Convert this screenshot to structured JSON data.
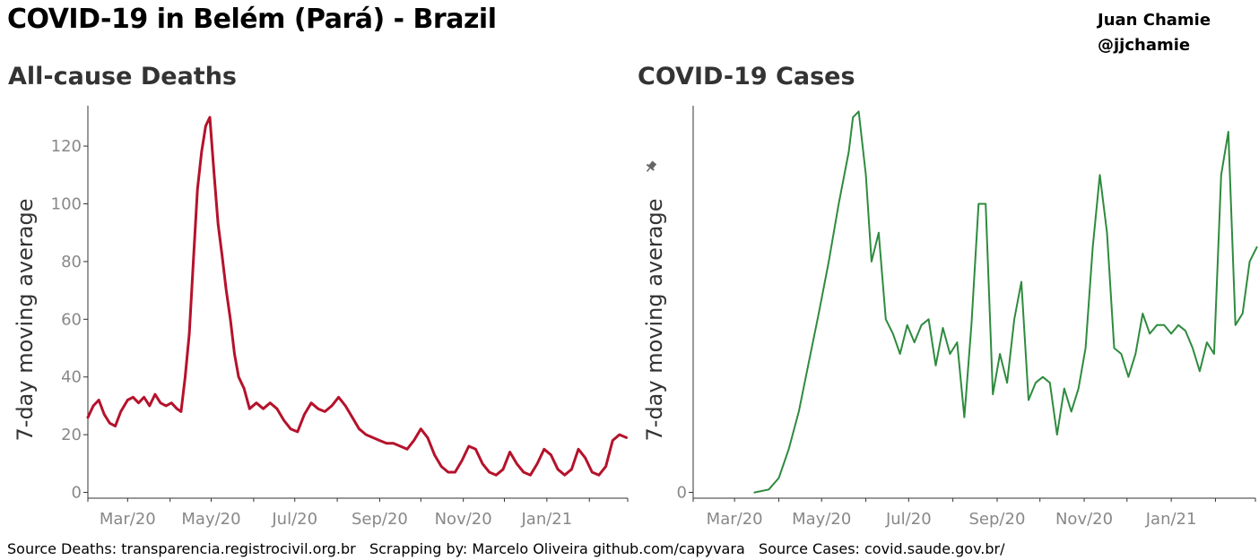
{
  "header": {
    "title": "COVID-19 in Belém (Pará) - Brazil",
    "author_name": "Juan Chamie",
    "author_handle": "@jjchamie"
  },
  "footer": {
    "text": "Source Deaths: transparencia.registrocivil.org.br   Scrapping by: Marcelo Oliveira github.com/capyvara   Source Cases: covid.saude.gov.br/"
  },
  "colors": {
    "deaths_line": "#b5122b",
    "cases_line": "#2e8b3e",
    "axis": "#333333",
    "pin_icon": "#666666"
  },
  "chart_data": [
    {
      "type": "line",
      "title": "All-cause Deaths",
      "ylabel": "7-day moving average",
      "xlabel": "",
      "x_tick_labels": [
        "Mar/20",
        "May/20",
        "Jul/20",
        "Sep/20",
        "Nov/20",
        "Jan/21"
      ],
      "y_ticks": [
        0,
        20,
        40,
        60,
        80,
        100,
        120
      ],
      "ylim": [
        -2,
        134
      ],
      "xlim": [
        "2020-02-01",
        "2021-03-01"
      ],
      "grid": false,
      "series": [
        {
          "x": [
            "2020-02-01",
            "2020-02-05",
            "2020-02-09",
            "2020-02-13",
            "2020-02-17",
            "2020-02-21",
            "2020-02-25",
            "2020-03-01",
            "2020-03-05",
            "2020-03-09",
            "2020-03-13",
            "2020-03-17",
            "2020-03-21",
            "2020-03-25",
            "2020-03-29",
            "2020-04-02",
            "2020-04-06",
            "2020-04-09",
            "2020-04-12",
            "2020-04-15",
            "2020-04-18",
            "2020-04-21",
            "2020-04-24",
            "2020-04-27",
            "2020-04-30",
            "2020-05-03",
            "2020-05-06",
            "2020-05-09",
            "2020-05-12",
            "2020-05-15",
            "2020-05-18",
            "2020-05-21",
            "2020-05-25",
            "2020-05-29",
            "2020-06-03",
            "2020-06-08",
            "2020-06-13",
            "2020-06-18",
            "2020-06-23",
            "2020-06-28",
            "2020-07-03",
            "2020-07-08",
            "2020-07-13",
            "2020-07-18",
            "2020-07-23",
            "2020-07-28",
            "2020-08-02",
            "2020-08-07",
            "2020-08-12",
            "2020-08-17",
            "2020-08-22",
            "2020-08-27",
            "2020-09-01",
            "2020-09-06",
            "2020-09-11",
            "2020-09-16",
            "2020-09-21",
            "2020-09-26",
            "2020-10-01",
            "2020-10-06",
            "2020-10-11",
            "2020-10-16",
            "2020-10-21",
            "2020-10-26",
            "2020-10-31",
            "2020-11-05",
            "2020-11-10",
            "2020-11-15",
            "2020-11-20",
            "2020-11-25",
            "2020-11-30",
            "2020-12-05",
            "2020-12-10",
            "2020-12-15",
            "2020-12-20",
            "2020-12-25",
            "2020-12-30",
            "2021-01-04",
            "2021-01-09",
            "2021-01-14",
            "2021-01-19",
            "2021-01-24",
            "2021-01-29",
            "2021-02-03",
            "2021-02-08",
            "2021-02-13",
            "2021-02-18",
            "2021-02-23",
            "2021-02-28"
          ],
          "values": [
            26,
            30,
            32,
            27,
            24,
            23,
            28,
            32,
            33,
            31,
            33,
            30,
            34,
            31,
            30,
            31,
            29,
            28,
            40,
            55,
            80,
            105,
            118,
            127,
            130,
            111,
            93,
            82,
            70,
            60,
            48,
            40,
            36,
            29,
            31,
            29,
            31,
            29,
            25,
            22,
            21,
            27,
            31,
            29,
            28,
            30,
            33,
            30,
            26,
            22,
            20,
            19,
            18,
            17,
            17,
            16,
            15,
            18,
            22,
            19,
            13,
            9,
            7,
            7,
            11,
            16,
            15,
            10,
            7,
            6,
            8,
            14,
            10,
            7,
            6,
            10,
            15,
            13,
            8,
            6,
            8,
            15,
            12,
            7,
            6,
            9,
            18,
            20,
            19
          ]
        }
      ]
    },
    {
      "type": "line",
      "title": "COVID-19 Cases",
      "ylabel": "7-day moving average",
      "xlabel": "",
      "x_tick_labels": [
        "Mar/20",
        "May/20",
        "Jul/20",
        "Sep/20",
        "Nov/20",
        "Jan/21"
      ],
      "y_ticks": [
        0
      ],
      "ylim": [
        -2,
        134
      ],
      "xlim": [
        "2020-02-01",
        "2021-03-01"
      ],
      "grid": false,
      "series": [
        {
          "x": [
            "2020-03-15",
            "2020-03-25",
            "2020-04-01",
            "2020-04-08",
            "2020-04-15",
            "2020-04-22",
            "2020-04-29",
            "2020-05-06",
            "2020-05-13",
            "2020-05-20",
            "2020-05-23",
            "2020-05-27",
            "2020-06-01",
            "2020-06-05",
            "2020-06-10",
            "2020-06-15",
            "2020-06-20",
            "2020-06-25",
            "2020-06-30",
            "2020-07-05",
            "2020-07-10",
            "2020-07-15",
            "2020-07-20",
            "2020-07-25",
            "2020-07-30",
            "2020-08-04",
            "2020-08-09",
            "2020-08-14",
            "2020-08-19",
            "2020-08-24",
            "2020-08-29",
            "2020-09-03",
            "2020-09-08",
            "2020-09-13",
            "2020-09-18",
            "2020-09-23",
            "2020-09-28",
            "2020-10-03",
            "2020-10-08",
            "2020-10-13",
            "2020-10-18",
            "2020-10-23",
            "2020-10-28",
            "2020-11-02",
            "2020-11-07",
            "2020-11-12",
            "2020-11-17",
            "2020-11-22",
            "2020-11-27",
            "2020-12-02",
            "2020-12-07",
            "2020-12-12",
            "2020-12-17",
            "2020-12-22",
            "2020-12-27",
            "2021-01-01",
            "2021-01-06",
            "2021-01-11",
            "2021-01-16",
            "2021-01-21",
            "2021-01-26",
            "2021-01-31",
            "2021-02-05",
            "2021-02-10",
            "2021-02-15",
            "2021-02-20",
            "2021-02-25",
            "2021-03-02"
          ],
          "values": [
            0,
            1,
            5,
            15,
            28,
            45,
            62,
            80,
            100,
            118,
            130,
            132,
            110,
            80,
            90,
            60,
            55,
            48,
            58,
            52,
            58,
            60,
            44,
            57,
            48,
            52,
            26,
            58,
            100,
            100,
            34,
            48,
            38,
            60,
            73,
            32,
            38,
            40,
            38,
            20,
            36,
            28,
            36,
            50,
            85,
            110,
            90,
            50,
            48,
            40,
            48,
            62,
            55,
            58,
            58,
            55,
            58,
            56,
            50,
            42,
            52,
            48,
            110,
            125,
            58,
            62,
            80,
            85
          ]
        }
      ]
    }
  ]
}
